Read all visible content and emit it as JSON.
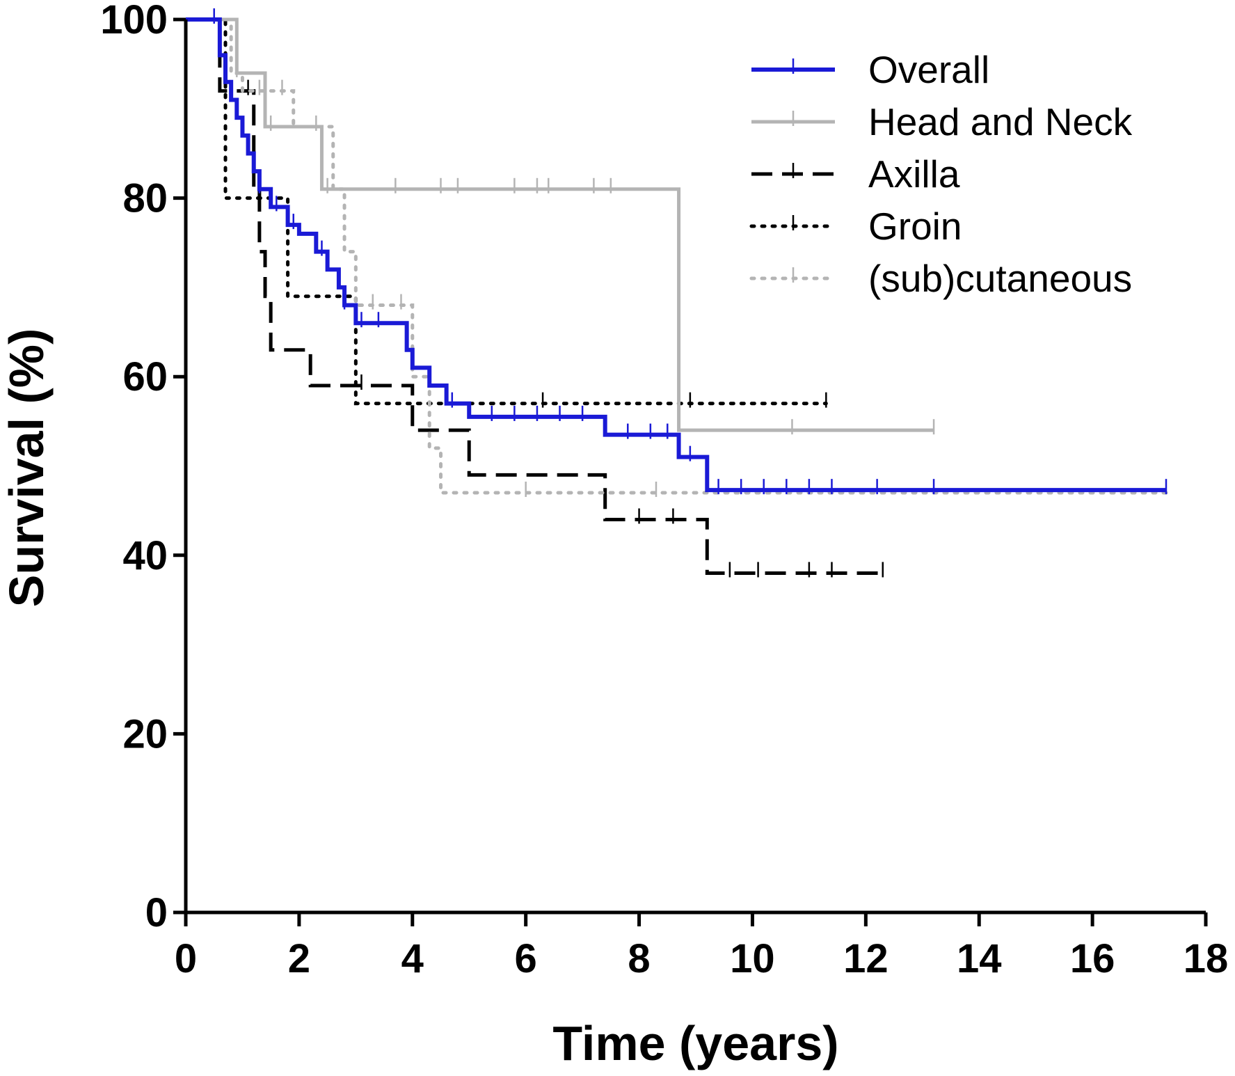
{
  "chart_data": {
    "type": "line",
    "subtype": "kaplan-meier-step",
    "title": "",
    "xlabel": "Time (years)",
    "ylabel": "Survival (%)",
    "xlim": [
      0,
      18
    ],
    "ylim": [
      0,
      100
    ],
    "xticks": [
      0,
      2,
      4,
      6,
      8,
      10,
      12,
      14,
      16,
      18
    ],
    "yticks": [
      0,
      20,
      40,
      60,
      80,
      100
    ],
    "xtick_labels": [
      "0",
      "2",
      "4",
      "6",
      "8",
      "10",
      "12",
      "14",
      "16",
      "18"
    ],
    "ytick_labels": [
      "0",
      "20",
      "40",
      "60",
      "80",
      "100"
    ],
    "grid": false,
    "legend_position": "top-right",
    "series": [
      {
        "name": "Overall",
        "color": "#1a1ad6",
        "dash": "solid",
        "steps": [
          [
            0,
            100
          ],
          [
            0.6,
            96
          ],
          [
            0.7,
            93
          ],
          [
            0.8,
            91
          ],
          [
            0.9,
            89
          ],
          [
            1.0,
            87
          ],
          [
            1.1,
            85
          ],
          [
            1.2,
            83
          ],
          [
            1.3,
            81
          ],
          [
            1.5,
            79
          ],
          [
            1.8,
            77
          ],
          [
            2.0,
            76
          ],
          [
            2.3,
            74
          ],
          [
            2.5,
            72
          ],
          [
            2.7,
            70
          ],
          [
            2.8,
            68
          ],
          [
            3.0,
            66
          ],
          [
            3.9,
            63
          ],
          [
            4.0,
            61
          ],
          [
            4.3,
            59
          ],
          [
            4.6,
            57
          ],
          [
            5.0,
            55.5
          ],
          [
            7.4,
            53.5
          ],
          [
            8.7,
            51
          ],
          [
            9.2,
            47.3
          ],
          [
            17.3,
            47.3
          ]
        ],
        "censored": [
          0.5,
          1.3,
          1.6,
          1.9,
          2.4,
          2.8,
          3.1,
          3.4,
          4.7,
          5.4,
          5.8,
          6.2,
          6.6,
          7.0,
          7.8,
          8.2,
          8.5,
          8.9,
          9.4,
          9.8,
          10.2,
          10.6,
          11.0,
          11.4,
          12.2,
          13.2,
          17.3
        ]
      },
      {
        "name": "Head and Neck",
        "color": "#b4b4b4",
        "dash": "solid",
        "steps": [
          [
            0,
            100
          ],
          [
            0.9,
            94
          ],
          [
            1.4,
            88
          ],
          [
            2.4,
            81
          ],
          [
            8.7,
            54
          ],
          [
            13.2,
            54
          ]
        ],
        "censored": [
          0.9,
          1.5,
          2.5,
          3.7,
          4.5,
          4.8,
          5.8,
          6.2,
          6.4,
          7.2,
          7.5,
          10.7,
          13.2
        ]
      },
      {
        "name": "Axilla",
        "color": "#000000",
        "dash": "long-dash",
        "steps": [
          [
            0,
            100
          ],
          [
            0.6,
            92
          ],
          [
            1.2,
            81
          ],
          [
            1.3,
            74
          ],
          [
            1.4,
            69
          ],
          [
            1.5,
            63
          ],
          [
            2.2,
            59
          ],
          [
            4.0,
            54
          ],
          [
            5.0,
            49
          ],
          [
            7.4,
            44
          ],
          [
            9.2,
            38
          ],
          [
            12.3,
            38
          ]
        ],
        "censored": [
          1.1,
          3.1,
          8.0,
          8.6,
          9.6,
          10.1,
          11.0,
          11.4,
          12.3
        ]
      },
      {
        "name": "Groin",
        "color": "#000000",
        "dash": "dotted",
        "steps": [
          [
            0,
            100
          ],
          [
            0.7,
            80
          ],
          [
            1.8,
            69
          ],
          [
            3.0,
            57
          ],
          [
            11.3,
            57
          ]
        ],
        "censored": [
          6.3,
          8.9,
          11.3
        ]
      },
      {
        "name": "(sub)cutaneous",
        "color": "#b4b4b4",
        "dash": "dotted",
        "steps": [
          [
            0,
            100
          ],
          [
            0.8,
            94
          ],
          [
            1.0,
            92
          ],
          [
            1.9,
            88
          ],
          [
            2.6,
            81
          ],
          [
            2.8,
            74
          ],
          [
            3.0,
            68
          ],
          [
            4.0,
            60
          ],
          [
            4.3,
            52
          ],
          [
            4.5,
            47
          ],
          [
            17.3,
            47
          ]
        ],
        "censored": [
          1.3,
          1.7,
          2.3,
          3.3,
          3.8,
          6.0,
          8.3
        ]
      }
    ]
  }
}
